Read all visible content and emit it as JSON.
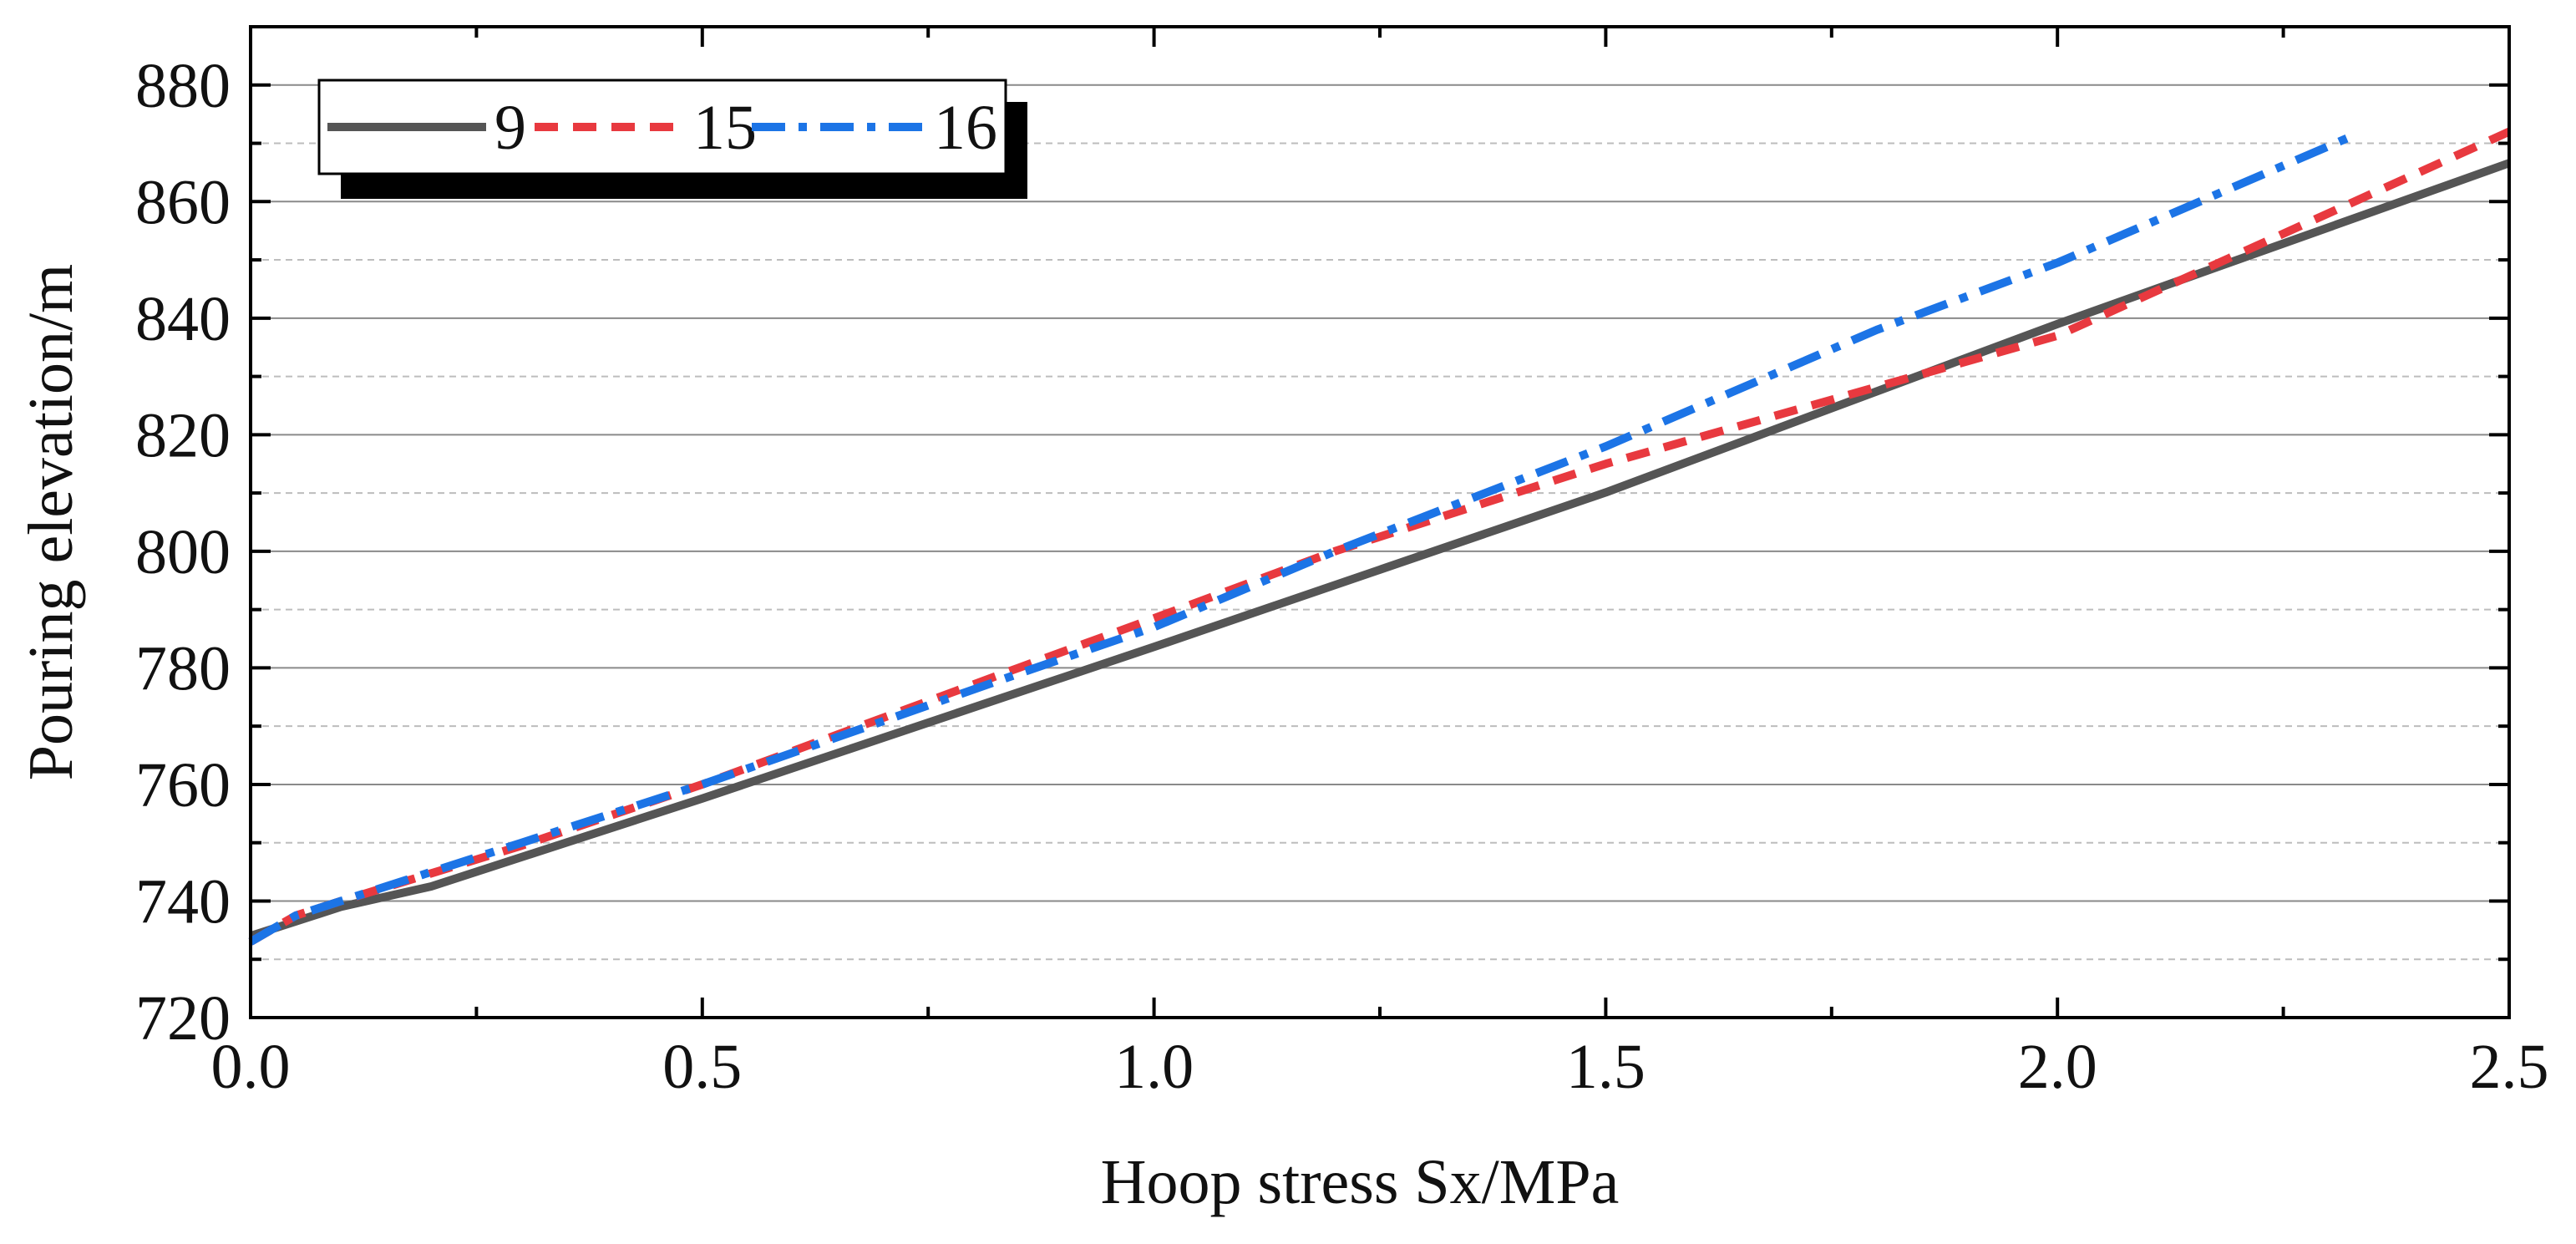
{
  "chart_data": {
    "type": "line",
    "title": "",
    "xlabel": "Hoop stress Sx/MPa",
    "ylabel": "Pouring elevation/m",
    "xlim": [
      0.0,
      2.5
    ],
    "ylim": [
      720,
      890
    ],
    "x_major_ticks": [
      0.0,
      0.5,
      1.0,
      1.5,
      2.0,
      2.5
    ],
    "x_tick_labels": [
      "0.0",
      "0.5",
      "1.0",
      "1.5",
      "2.0",
      "2.5"
    ],
    "x_minor_ticks": [
      0.25,
      0.75,
      1.25,
      1.75,
      2.25
    ],
    "y_major_ticks": [
      720,
      740,
      760,
      780,
      800,
      820,
      840,
      860,
      880
    ],
    "y_tick_labels": [
      "720",
      "740",
      "760",
      "780",
      "800",
      "820",
      "840",
      "860",
      "880"
    ],
    "y_minor_ticks": [
      730,
      750,
      770,
      790,
      810,
      830,
      850,
      870
    ],
    "grid": {
      "major": "solid",
      "minor": "dashed"
    },
    "legend": {
      "placement": "top-left",
      "entries": [
        "9",
        "15",
        "16"
      ]
    },
    "series": [
      {
        "name": "9",
        "color": "#555555",
        "dash": "solid",
        "x": [
          0.0,
          0.05,
          0.1,
          0.2,
          0.5,
          1.0,
          1.5,
          2.0,
          2.5
        ],
        "y": [
          734,
          736.5,
          739,
          742.5,
          757.6,
          783.6,
          810.1,
          839,
          866.6
        ]
      },
      {
        "name": "15",
        "color": "#e8393f",
        "dash": "dashed",
        "x": [
          0.0,
          0.05,
          0.1,
          0.3,
          0.5,
          0.85,
          1.0,
          1.2,
          1.5,
          2.0,
          2.5
        ],
        "y": [
          733,
          737.5,
          740,
          749.5,
          760,
          780,
          788.5,
          800,
          815,
          837,
          872
        ]
      },
      {
        "name": "16",
        "color": "#1c74e6",
        "dash": "dashdot",
        "x": [
          0.0,
          0.05,
          0.1,
          0.3,
          0.5,
          0.85,
          1.0,
          1.2,
          1.5,
          1.8,
          2.0,
          2.33
        ],
        "y": [
          733,
          737.5,
          740,
          750,
          760,
          779,
          787,
          800,
          818,
          838,
          849.5,
          871.5
        ]
      }
    ]
  }
}
